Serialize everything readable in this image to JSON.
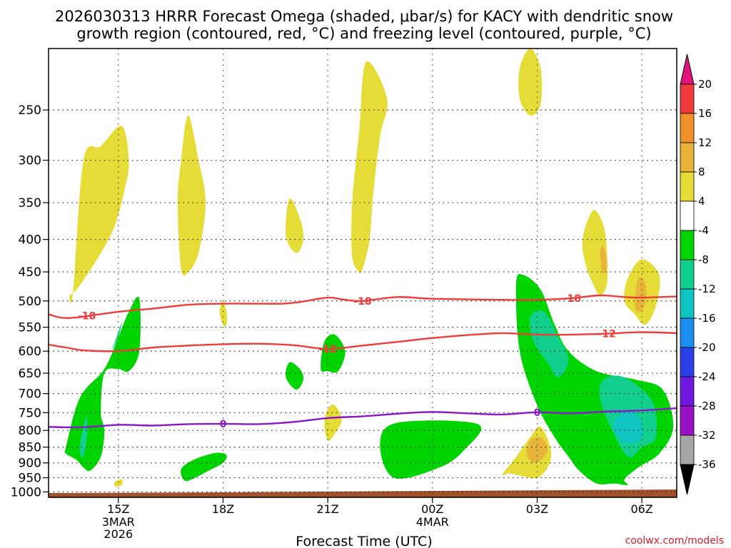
{
  "chart_data": {
    "type": "time-height cross section",
    "title_line1": "2026030313 HRRR Forecast Omega (shaded, μbar/s) for KACY with dendritic snow",
    "title_line2": "growth region (contoured, red, °C) and freezing level (contoured, purple, °C)",
    "xlabel": "Forecast Time (UTC)",
    "credit": "coolwx.com/models",
    "x_ticks": [
      {
        "hour": 15,
        "label": "15Z",
        "sub1": "3MAR",
        "sub2": "2026"
      },
      {
        "hour": 18,
        "label": "18Z",
        "sub1": "",
        "sub2": ""
      },
      {
        "hour": 21,
        "label": "21Z",
        "sub1": "",
        "sub2": ""
      },
      {
        "hour": 24,
        "label": "00Z",
        "sub1": "4MAR",
        "sub2": ""
      },
      {
        "hour": 27,
        "label": "03Z",
        "sub1": "",
        "sub2": ""
      },
      {
        "hour": 30,
        "label": "06Z",
        "sub1": "",
        "sub2": ""
      }
    ],
    "x_range_hours": [
      13,
      31
    ],
    "y_ticks_hPa": [
      250,
      300,
      350,
      400,
      450,
      500,
      550,
      600,
      650,
      700,
      750,
      800,
      850,
      900,
      950,
      1000
    ],
    "y_range_hPa": [
      200,
      1020
    ],
    "colorbar": {
      "labels": [
        "20",
        "16",
        "12",
        "8",
        "4",
        "-4",
        "-8",
        "-12",
        "-16",
        "-20",
        "-24",
        "-28",
        "-32",
        "-36"
      ],
      "colors": [
        "#ef3b3b",
        "#f0902a",
        "#e8b43a",
        "#e6dc37",
        "#ffffff",
        "#00d400",
        "#13cf8e",
        "#10c4c4",
        "#1a8ff0",
        "#2a3fe6",
        "#7018e0",
        "#9a10c4",
        "#a6a6a6"
      ],
      "top_arrow_color": "#e0137e",
      "bottom_arrow_color": "#000000"
    },
    "contour_labels": {
      "dgz_upper": "-18",
      "dgz_lower": "-12",
      "freezing": "0"
    },
    "dgz_upper_line": {
      "color": "#ef3b3b",
      "hours": [
        13,
        13.6,
        15,
        16,
        17,
        18,
        19,
        19.7,
        20.2,
        21,
        21.5,
        22,
        23,
        24,
        26,
        27,
        28,
        28.8,
        29.5,
        30,
        31
      ],
      "hPa": [
        525,
        532,
        520,
        514,
        507,
        505,
        505,
        505,
        502,
        494,
        498,
        500,
        493,
        496,
        498,
        498,
        495,
        490,
        493,
        494,
        492
      ]
    },
    "dgz_lower_line": {
      "color": "#ef3b3b",
      "hours": [
        13,
        13.5,
        14,
        15,
        16,
        17,
        18,
        19,
        20,
        21,
        22,
        23,
        24,
        25,
        26,
        27,
        28,
        29,
        30,
        31
      ],
      "hPa": [
        586,
        592,
        598,
        600,
        592,
        588,
        585,
        584,
        587,
        595,
        588,
        580,
        572,
        566,
        562,
        565,
        565,
        563,
        560,
        562
      ]
    },
    "freezing_line": {
      "color": "#8a17c9",
      "hours": [
        13,
        14,
        15,
        16,
        17,
        18,
        19,
        20,
        21,
        22,
        23,
        24,
        25,
        26,
        27,
        28,
        29,
        30,
        31
      ],
      "hPa": [
        790,
        791,
        784,
        786,
        782,
        781,
        782,
        776,
        765,
        760,
        753,
        748,
        752,
        755,
        749,
        752,
        747,
        744,
        738
      ]
    },
    "omega_regions": [
      {
        "value_range": "4 to 8",
        "hours": [
          13.7,
          14.0,
          14.5,
          15.1,
          15.3,
          15.2,
          14.9,
          14.5,
          14.1,
          13.8,
          13.6
        ],
        "hPa": [
          485,
          300,
          285,
          265,
          300,
          330,
          380,
          420,
          455,
          480,
          490
        ]
      },
      {
        "value_range": "4 to 8",
        "hours": [
          16.8,
          16.7,
          16.8,
          17.0,
          17.3,
          17.5,
          17.3,
          17.0
        ],
        "hPa": [
          445,
          350,
          300,
          255,
          300,
          350,
          420,
          450
        ]
      },
      {
        "value_range": "4 to 8",
        "hours": [
          19.8,
          19.9,
          20.2,
          20.3,
          20.1
        ],
        "hPa": [
          395,
          345,
          370,
          400,
          420
        ]
      },
      {
        "value_range": "4 to 8",
        "hours": [
          18.0,
          17.9,
          18.0,
          18.1,
          18.1
        ],
        "hPa": [
          545,
          520,
          500,
          520,
          545
        ]
      },
      {
        "value_range": "4 to 8",
        "hours": [
          21.7,
          21.7,
          21.9,
          22.1,
          22.7,
          22.5,
          22.3,
          22.2,
          22.0,
          21.9
        ],
        "hPa": [
          425,
          350,
          270,
          210,
          240,
          275,
          340,
          400,
          445,
          450
        ]
      },
      {
        "value_range": "4 to 8",
        "hours": [
          26.5,
          26.5,
          26.8,
          27.1,
          27.1,
          26.8
        ],
        "hPa": [
          240,
          215,
          200,
          215,
          245,
          255
        ]
      },
      {
        "value_range": "4 to 8",
        "hours": [
          28.4,
          28.3,
          28.6,
          28.9,
          29.0,
          29.0,
          28.8,
          28.6
        ],
        "hPa": [
          440,
          400,
          360,
          380,
          420,
          470,
          490,
          470
        ]
      },
      {
        "value_range": "4 to 8",
        "hours": [
          29.5,
          29.6,
          30.0,
          30.5,
          30.4,
          30.1,
          29.8
        ],
        "hPa": [
          500,
          460,
          430,
          455,
          510,
          545,
          525
        ]
      },
      {
        "value_range": "4 to 8",
        "hours": [
          20.9,
          21.0,
          21.2,
          21.4,
          21.2,
          21.0
        ],
        "hPa": [
          780,
          740,
          730,
          770,
          810,
          830
        ]
      },
      {
        "value_range": "4 to 8",
        "hours": [
          26.0,
          26.4,
          26.8,
          27.1,
          27.4,
          27.3,
          27.0,
          26.6,
          26.2
        ],
        "hPa": [
          940,
          880,
          820,
          790,
          860,
          915,
          950,
          945,
          935
        ]
      },
      {
        "value_range": "4 to 8",
        "hours": [
          14.9,
          15.1,
          15.1,
          14.9
        ],
        "hPa": [
          965,
          955,
          975,
          980
        ]
      },
      {
        "value_range": "8 to 12",
        "hours": [
          29.8,
          29.9,
          30.1,
          30.1,
          29.9
        ],
        "hPa": [
          505,
          460,
          470,
          505,
          520
        ]
      },
      {
        "value_range": "8 to 12",
        "hours": [
          28.8,
          28.9,
          29.0,
          28.9
        ],
        "hPa": [
          420,
          410,
          435,
          455
        ]
      },
      {
        "value_range": "8 to 12",
        "hours": [
          26.7,
          26.8,
          27.1,
          27.3,
          27.2,
          26.9
        ],
        "hPa": [
          870,
          830,
          820,
          850,
          880,
          900
        ]
      },
      {
        "value_range": "-4 to -8",
        "hours": [
          13.5,
          13.9,
          14.6,
          15.0,
          15.3,
          15.6,
          15.6,
          15.3,
          15.0,
          14.6,
          14.5,
          14.6,
          14.5,
          14.2,
          14.0,
          13.8,
          13.5
        ],
        "hPa": [
          850,
          710,
          640,
          570,
          520,
          495,
          600,
          645,
          640,
          650,
          750,
          800,
          880,
          925,
          915,
          890,
          870
        ]
      },
      {
        "value_range": "-4 to -8",
        "hours": [
          16.8,
          17.2,
          17.8,
          18.1,
          18.0,
          17.6,
          17.2,
          16.9
        ],
        "hPa": [
          920,
          888,
          868,
          875,
          900,
          925,
          950,
          960
        ]
      },
      {
        "value_range": "-4 to -8",
        "hours": [
          19.8,
          19.9,
          20.2,
          20.3,
          20.1
        ],
        "hPa": [
          660,
          625,
          640,
          665,
          690
        ]
      },
      {
        "value_range": "-4 to -8",
        "hours": [
          20.8,
          20.9,
          21.2,
          21.5,
          21.3,
          21.0
        ],
        "hPa": [
          640,
          580,
          565,
          600,
          645,
          645
        ]
      },
      {
        "value_range": "-4 to -8",
        "hours": [
          22.5,
          23.0,
          25.3,
          24.9,
          24.2,
          22.9
        ],
        "hPa": [
          840,
          778,
          782,
          860,
          915,
          950
        ]
      },
      {
        "value_range": "-4 to -8",
        "hours": [
          26.5,
          26.4,
          26.6,
          27.1,
          27.5,
          27.9,
          28.7,
          29.8,
          30.6,
          30.9,
          30.5,
          29.9,
          29.5,
          29.6,
          29.2,
          28.7,
          28.2,
          27.9,
          27.5,
          27.0
        ],
        "hPa": [
          600,
          470,
          455,
          480,
          545,
          600,
          645,
          665,
          690,
          790,
          870,
          915,
          955,
          975,
          970,
          970,
          925,
          880,
          820,
          730
        ]
      },
      {
        "value_range": "-8 to -12",
        "hours": [
          14.8,
          14.9,
          15.1,
          15.0
        ],
        "hPa": [
          600,
          580,
          540,
          570
        ]
      },
      {
        "value_range": "-8 to -12",
        "hours": [
          13.9,
          14.0,
          14.1,
          14.1,
          14.0,
          13.9
        ],
        "hPa": [
          840,
          790,
          760,
          820,
          880,
          870
        ]
      },
      {
        "value_range": "-8 to -12",
        "hours": [
          26.9,
          26.8,
          27.2,
          27.6,
          27.9,
          27.6,
          27.3
        ],
        "hPa": [
          580,
          530,
          520,
          570,
          620,
          660,
          625
        ]
      },
      {
        "value_range": "-8 to -12",
        "hours": [
          28.8,
          28.9,
          29.5,
          30.3,
          30.4,
          30.0,
          29.6,
          29.1
        ],
        "hPa": [
          710,
          665,
          660,
          720,
          820,
          850,
          880,
          790
        ]
      },
      {
        "value_range": "-12 to -16",
        "hours": [
          29.2,
          29.5,
          29.9,
          30.0,
          29.6,
          29.3
        ],
        "hPa": [
          780,
          745,
          760,
          820,
          840,
          815
        ]
      }
    ],
    "surface": {
      "color": "#a0522d",
      "note": "below-ground shading"
    }
  }
}
